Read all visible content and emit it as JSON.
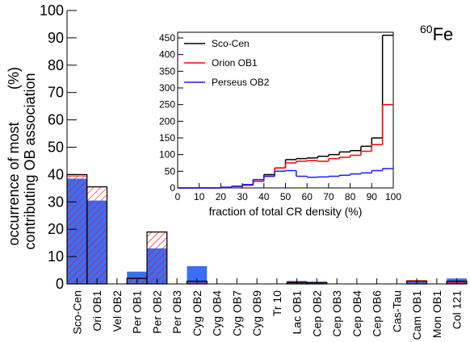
{
  "chart_data": [
    {
      "type": "bar",
      "ylabel_lines": [
        "occurrence of most",
        "contributing OB association"
      ],
      "ylabel_unit": "(%)",
      "annotation_mass": "60",
      "annotation_element": "Fe",
      "categories": [
        "Sco-Cen",
        "Ori OB1",
        "Vel OB2",
        "Per OB1",
        "Per OB2",
        "Per OB3",
        "Cyg OB2",
        "Cyg OB4",
        "Cyg OB7",
        "Cyg OB9",
        "Tr 10",
        "Lac OB1",
        "Cep OB2",
        "Cep OB3",
        "Cep OB4",
        "Cep OB6",
        "Cas-Tau",
        "Cam OB1",
        "Mon OB1",
        "Col 121"
      ],
      "series": [
        {
          "color": "#3b6ef5",
          "style": "filled",
          "values": [
            38.5,
            30.5,
            0,
            4.5,
            13,
            0,
            6.5,
            0,
            0,
            0,
            0,
            1.1,
            0.8,
            0,
            0,
            0,
            0,
            0.8,
            0,
            2
          ]
        },
        {
          "color": "#ff0000",
          "style": "hatched",
          "values": [
            39.5,
            35.5,
            0,
            2.2,
            19,
            0,
            0.8,
            0,
            0,
            0,
            0,
            0.7,
            0.4,
            0,
            0,
            0,
            0,
            1.2,
            0,
            0.5
          ]
        },
        {
          "color": "#000000",
          "style": "outline",
          "values": [
            40,
            35.5,
            0,
            2,
            19,
            0,
            1,
            0,
            0,
            0,
            0,
            0.5,
            0.5,
            0,
            0,
            0,
            0,
            1,
            0,
            1
          ]
        }
      ],
      "ylim": [
        0,
        100
      ],
      "yticks": [
        0,
        10,
        20,
        30,
        40,
        50,
        60,
        70,
        80,
        90,
        100
      ]
    },
    {
      "type": "histogram",
      "xlabel": "fraction of total CR density (%)",
      "bins": [
        0,
        5,
        10,
        15,
        20,
        25,
        30,
        35,
        40,
        45,
        50,
        55,
        60,
        65,
        70,
        75,
        80,
        85,
        90,
        95,
        100
      ],
      "series": [
        {
          "name": "Sco-Cen",
          "color": "#000000",
          "values": [
            0,
            0,
            0,
            0,
            2,
            5,
            10,
            25,
            40,
            60,
            85,
            88,
            90,
            95,
            100,
            108,
            112,
            125,
            150,
            458
          ]
        },
        {
          "name": "Orion OB1",
          "color": "#ff0000",
          "values": [
            0,
            0,
            0,
            0,
            2,
            5,
            8,
            20,
            35,
            60,
            75,
            80,
            82,
            80,
            88,
            92,
            98,
            110,
            130,
            250
          ]
        },
        {
          "name": "Perseus OB2",
          "color": "#1a1aff",
          "values": [
            0,
            0,
            0,
            0,
            2,
            5,
            10,
            25,
            35,
            50,
            52,
            35,
            32,
            33,
            35,
            38,
            42,
            45,
            52,
            58
          ]
        }
      ],
      "legend": "upper left",
      "xlim": [
        0,
        100
      ],
      "xticks": [
        0,
        10,
        20,
        30,
        40,
        50,
        60,
        70,
        80,
        90,
        100
      ],
      "ylim": [
        0,
        467
      ],
      "yticks": [
        0,
        50,
        100,
        150,
        200,
        250,
        300,
        350,
        400,
        450
      ]
    }
  ]
}
